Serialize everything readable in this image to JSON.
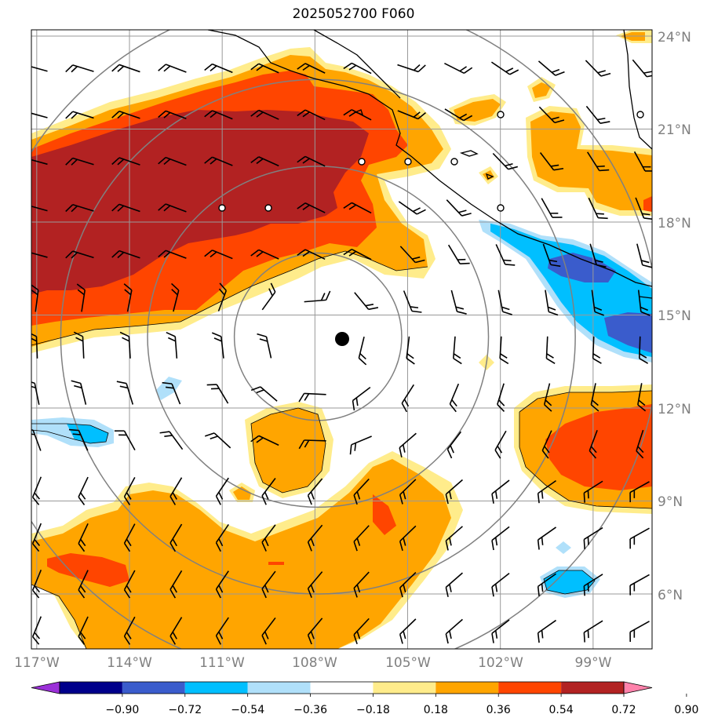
{
  "title": "2025052700 F060",
  "latitude_labels": [
    "24°N",
    "21°N",
    "18°N",
    "15°N",
    "12°N",
    "9°N",
    "6°N"
  ],
  "longitude_labels": [
    "117°W",
    "114°W",
    "111°W",
    "108°W",
    "105°W",
    "102°W",
    "99°W"
  ],
  "colorbar": {
    "labels": [
      "−0.90",
      "−0.72",
      "−0.54",
      "−0.36",
      "−0.18",
      "0.18",
      "0.36",
      "0.54",
      "0.72",
      "0.90"
    ],
    "colors": [
      "#9b30d8",
      "#00008b",
      "#3a5ccc",
      "#00bfff",
      "#b0e0fa",
      "#ffffff",
      "#ffec8b",
      "#ffa500",
      "#ff4500",
      "#b22222",
      "#ff82ab"
    ]
  },
  "storm_center": {
    "lon": -107.9,
    "lat": 14.3
  },
  "range_rings_deg": [
    2.7,
    5.5,
    8.3,
    11.0
  ],
  "fill_colors": {
    "yellow": "#ffec8b",
    "orange": "#ffa500",
    "red_orange": "#ff4500",
    "dark_red": "#b22222",
    "light_blue": "#b0e0fa",
    "deep_sky": "#00bfff",
    "royal_blue": "#3a5ccc"
  }
}
